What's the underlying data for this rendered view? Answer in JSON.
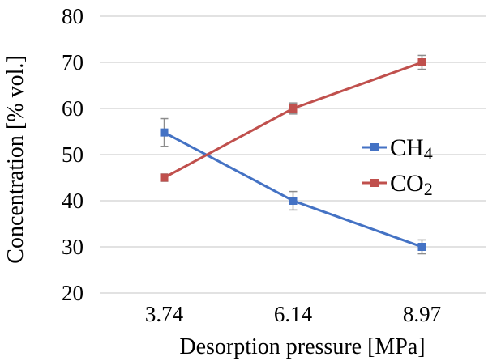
{
  "chart_data": {
    "type": "line",
    "categories": [
      "3.74",
      "6.14",
      "8.97"
    ],
    "series": [
      {
        "name": "CH4",
        "label": {
          "base": "CH",
          "sub": "4"
        },
        "color": "#4472c4",
        "values": [
          54.8,
          40.0,
          30.0
        ],
        "error": [
          3.0,
          2.0,
          1.5
        ]
      },
      {
        "name": "CO2",
        "label": {
          "base": "CO",
          "sub": "2"
        },
        "color": "#c0504d",
        "values": [
          45.0,
          60.0,
          70.0
        ],
        "error": [
          0.8,
          1.2,
          1.5
        ]
      }
    ],
    "xlabel": "Desorption pressure [MPa]",
    "ylabel": "Concentration [% vol.]",
    "ylim": [
      20,
      80
    ],
    "yticks": [
      "20",
      "30",
      "40",
      "50",
      "60",
      "70",
      "80"
    ],
    "grid": true,
    "legend": "right",
    "error_bar_color": "#8c8c8c"
  }
}
